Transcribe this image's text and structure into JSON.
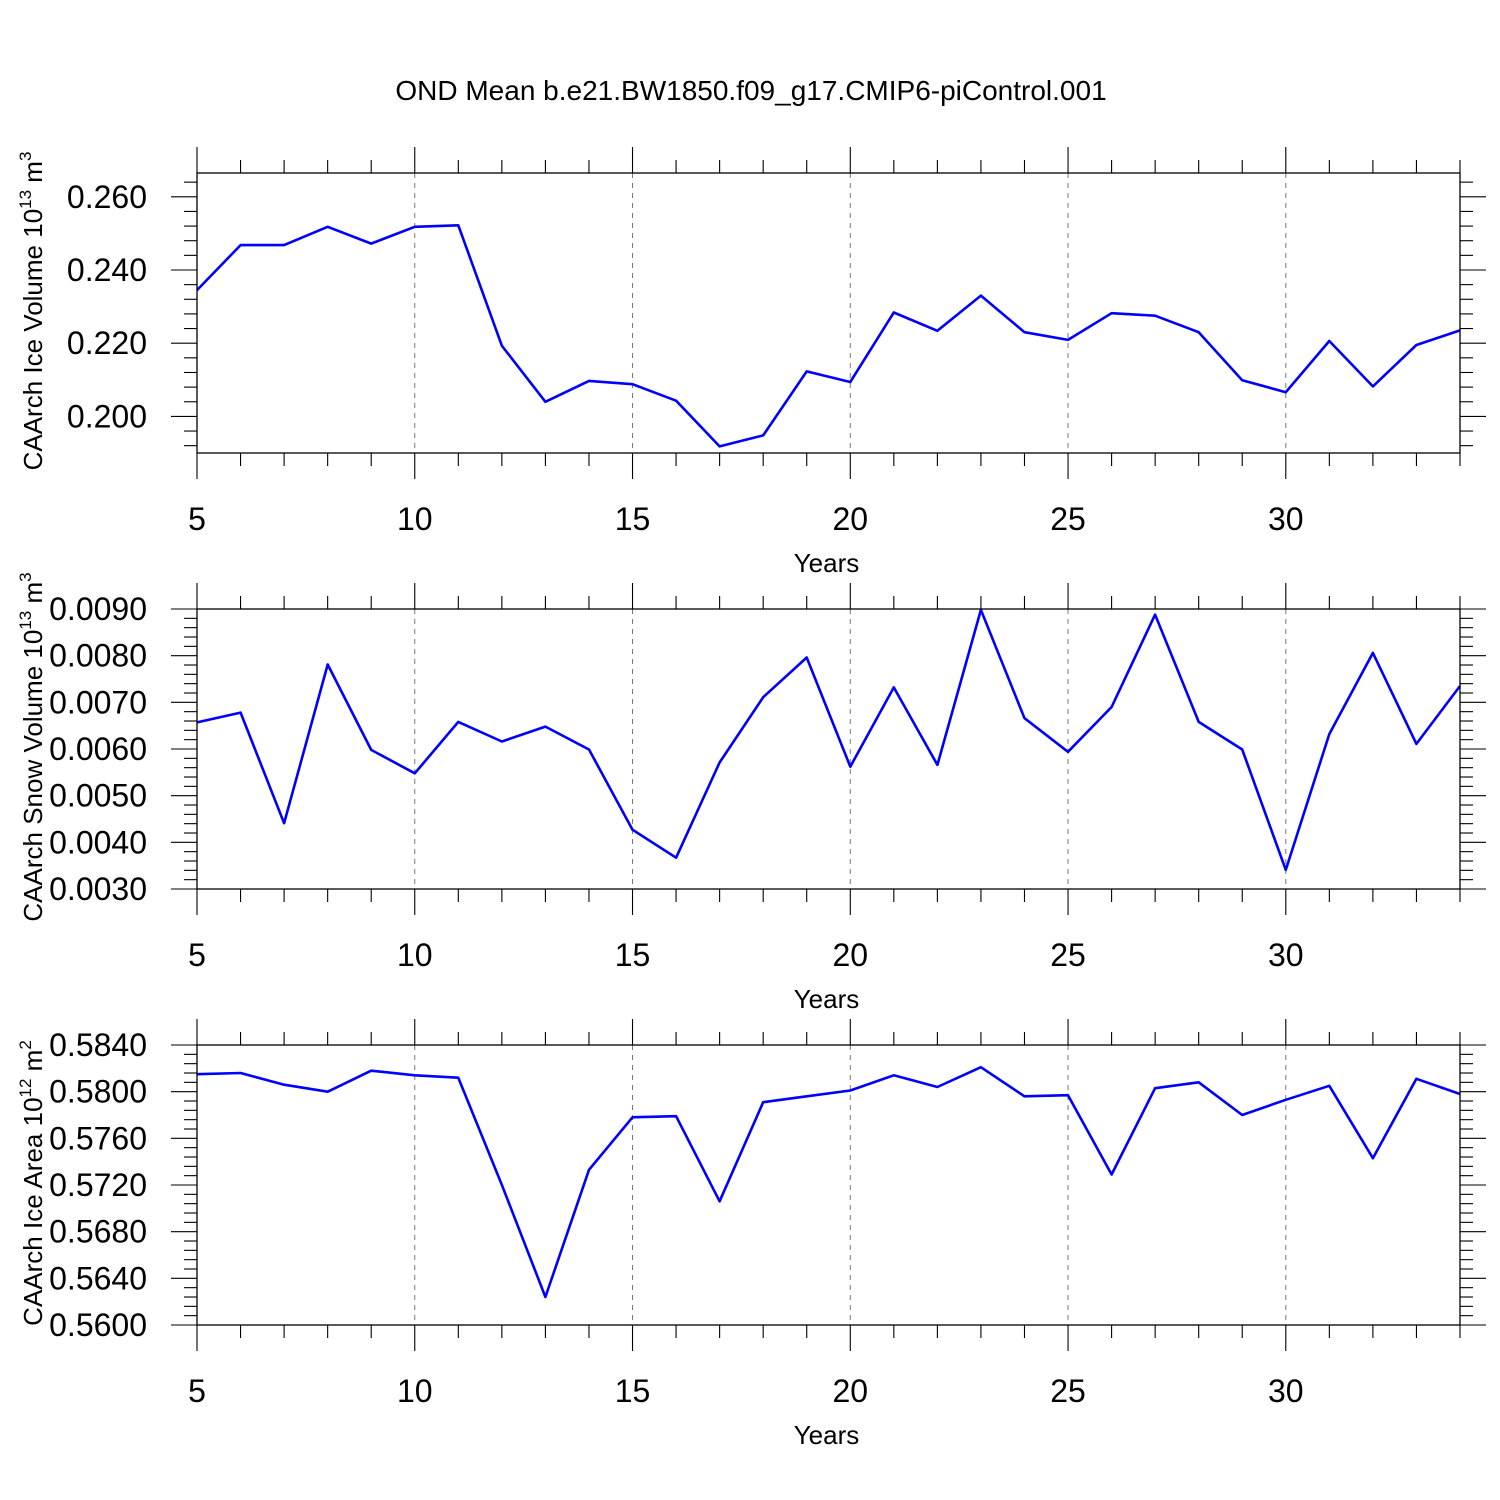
{
  "figure_title": "OND Mean b.e21.BW1850.f09_g17.CMIP6-piControl.001",
  "chart_data": [
    {
      "type": "line",
      "title": "",
      "xlabel": "Years",
      "ylabel": "CAArch Ice Volume 10",
      "ylabel_exp": "13",
      "ylabel_unit": " m",
      "ylabel_unit_exp": "3",
      "xlim": [
        5,
        34
      ],
      "ylim": [
        0.19,
        0.2665
      ],
      "xticks": [
        5,
        10,
        15,
        20,
        25,
        30
      ],
      "yticks": [
        0.2,
        0.22,
        0.24,
        0.26
      ],
      "ytick_labels": [
        "0.200",
        "0.220",
        "0.240",
        "0.260"
      ],
      "grid": "x-dashed",
      "series": [
        {
          "name": "CAArch Ice Volume",
          "color": "#0000ff",
          "x": [
            5,
            6,
            7,
            8,
            9,
            10,
            11,
            12,
            13,
            14,
            15,
            16,
            17,
            18,
            19,
            20,
            21,
            22,
            23,
            24,
            25,
            26,
            27,
            28,
            29,
            30,
            31,
            32,
            33,
            34
          ],
          "values": [
            0.2345,
            0.2468,
            0.2468,
            0.2518,
            0.2472,
            0.2518,
            0.2522,
            0.2193,
            0.204,
            0.2097,
            0.2088,
            0.2043,
            0.1918,
            0.1948,
            0.2123,
            0.2094,
            0.2284,
            0.2234,
            0.233,
            0.223,
            0.2209,
            0.2282,
            0.2275,
            0.223,
            0.2099,
            0.2066,
            0.2206,
            0.2082,
            0.2195,
            0.2235
          ]
        }
      ]
    },
    {
      "type": "line",
      "title": "",
      "xlabel": "Years",
      "ylabel": "CAArch Snow Volume 10",
      "ylabel_exp": "13",
      "ylabel_unit": " m",
      "ylabel_unit_exp": "3",
      "xlim": [
        5,
        34
      ],
      "ylim": [
        0.003,
        0.009
      ],
      "xticks": [
        5,
        10,
        15,
        20,
        25,
        30
      ],
      "yticks": [
        0.003,
        0.004,
        0.005,
        0.006,
        0.007,
        0.008,
        0.009
      ],
      "ytick_labels": [
        "0.0030",
        "0.0040",
        "0.0050",
        "0.0060",
        "0.0070",
        "0.0080",
        "0.0090"
      ],
      "grid": "x-dashed",
      "series": [
        {
          "name": "CAArch Snow Volume",
          "color": "#0000ff",
          "x": [
            5,
            6,
            7,
            8,
            9,
            10,
            11,
            12,
            13,
            14,
            15,
            16,
            17,
            18,
            19,
            20,
            21,
            22,
            23,
            24,
            25,
            26,
            27,
            28,
            29,
            30,
            31,
            32,
            33,
            34
          ],
          "values": [
            0.00657,
            0.00678,
            0.00441,
            0.00781,
            0.00598,
            0.00548,
            0.00658,
            0.00616,
            0.00648,
            0.00599,
            0.00427,
            0.00367,
            0.00571,
            0.00711,
            0.00796,
            0.00562,
            0.00732,
            0.00566,
            0.00898,
            0.00666,
            0.00594,
            0.0069,
            0.00888,
            0.00658,
            0.00599,
            0.00341,
            0.00632,
            0.00806,
            0.00611,
            0.00735
          ]
        }
      ]
    },
    {
      "type": "line",
      "title": "",
      "xlabel": "Years",
      "ylabel": "CAArch Ice Area 10",
      "ylabel_exp": "12",
      "ylabel_unit": " m",
      "ylabel_unit_exp": "2",
      "xlim": [
        5,
        34
      ],
      "ylim": [
        0.56,
        0.584
      ],
      "xticks": [
        5,
        10,
        15,
        20,
        25,
        30
      ],
      "yticks": [
        0.56,
        0.564,
        0.568,
        0.572,
        0.576,
        0.58,
        0.584
      ],
      "ytick_labels": [
        "0.5600",
        "0.5640",
        "0.5680",
        "0.5720",
        "0.5760",
        "0.5800",
        "0.5840"
      ],
      "grid": "x-dashed",
      "series": [
        {
          "name": "CAArch Ice Area",
          "color": "#0000ff",
          "x": [
            5,
            6,
            7,
            8,
            9,
            10,
            11,
            12,
            13,
            14,
            15,
            16,
            17,
            18,
            19,
            20,
            21,
            22,
            23,
            24,
            25,
            26,
            27,
            28,
            29,
            30,
            31,
            32,
            33,
            34
          ],
          "values": [
            0.5815,
            0.5816,
            0.5806,
            0.58,
            0.5818,
            0.5814,
            0.5812,
            0.572,
            0.5624,
            0.5733,
            0.5778,
            0.5779,
            0.5706,
            0.5791,
            0.5796,
            0.5801,
            0.5814,
            0.5804,
            0.5821,
            0.5796,
            0.5797,
            0.5729,
            0.5803,
            0.5808,
            0.578,
            0.5793,
            0.5805,
            0.5743,
            0.5811,
            0.5798
          ]
        }
      ]
    }
  ]
}
